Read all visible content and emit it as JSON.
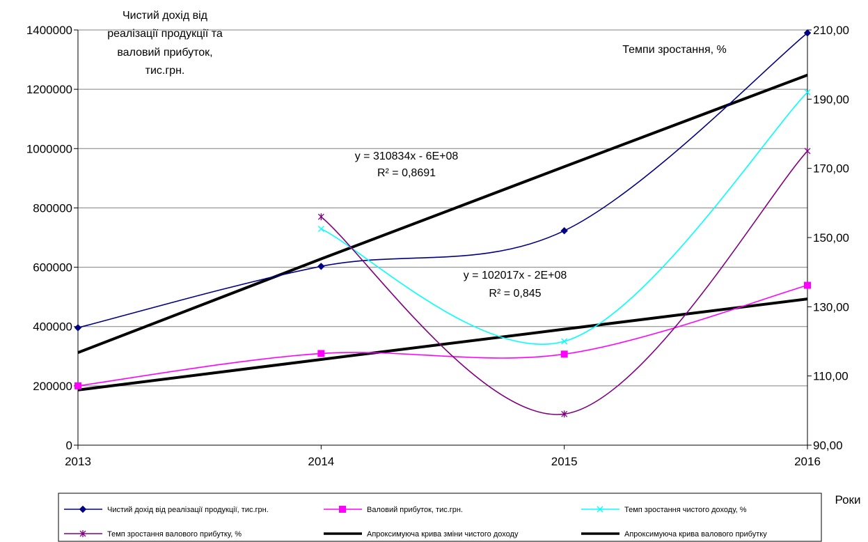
{
  "chart_data": {
    "type": "line",
    "left_axis_title": [
      "Чистий дохід від",
      "реалізації продукції та",
      "валовий прибуток,",
      "тис.грн."
    ],
    "right_axis_title": "Темпи зростання, %",
    "xlabel": "Роки",
    "categories": [
      "2013",
      "2014",
      "2015",
      "2016"
    ],
    "ylim_left": [
      0,
      1400000
    ],
    "yticks_left": [
      "0",
      "200000",
      "400000",
      "600000",
      "800000",
      "1000000",
      "1200000",
      "1400000"
    ],
    "ylim_right": [
      90,
      210
    ],
    "yticks_right": [
      "90,00",
      "110,00",
      "130,00",
      "150,00",
      "170,00",
      "190,00",
      "210,00"
    ],
    "series": [
      {
        "name": "Чистий дохід від реалізації продукції, тис.грн.",
        "axis": "left",
        "marker": "diamond",
        "color": "#000080",
        "values": [
          396000,
          603000,
          723000,
          1390000
        ]
      },
      {
        "name": "Валовий прибуток, тис.грн.",
        "axis": "left",
        "marker": "square",
        "color": "#ff00ff",
        "values": [
          200000,
          309000,
          307000,
          539000
        ]
      },
      {
        "name": "Темп зростання чистого доходу, %",
        "axis": "right",
        "marker": "x",
        "color": "#00ffff",
        "values": [
          null,
          152.5,
          120,
          192
        ]
      },
      {
        "name": "Темп зростання валового прибутку, %",
        "axis": "right",
        "marker": "star",
        "color": "#800080",
        "values": [
          null,
          156,
          99,
          175
        ]
      },
      {
        "name": "Апроксимуюча крива зміни чистого доходу",
        "axis": "left",
        "marker": "none",
        "color": "#000000",
        "trend": true,
        "values": [
          312000,
          628000,
          939000,
          1248000
        ]
      },
      {
        "name": "Апроксимуюча крива валового прибутку",
        "axis": "left",
        "marker": "none",
        "color": "#000000",
        "trend": true,
        "values": [
          186000,
          289000,
          391000,
          493000
        ]
      }
    ],
    "annotations": [
      {
        "lines": [
          "y = 310834x - 6E+08",
          "R² = 0,8691"
        ]
      },
      {
        "lines": [
          "y = 102017x - 2E+08",
          "R² = 0,845"
        ]
      }
    ],
    "grid": true,
    "legend_position": "bottom"
  }
}
